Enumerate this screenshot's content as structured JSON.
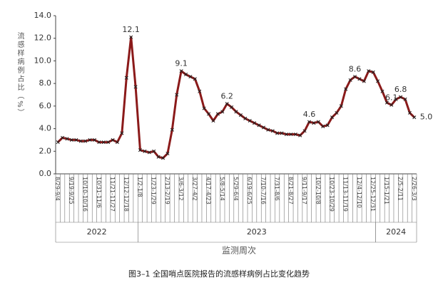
{
  "chart_data": {
    "type": "line",
    "y_label": "流感样病例占比（%）",
    "x_label": "监测周次",
    "caption": "图3–1 全国哨点医院报告的流感样病例占比变化趋势",
    "categories": [
      "8/29-9/4",
      null,
      null,
      "9/19-9/25",
      null,
      null,
      "10/10-10/16",
      null,
      null,
      "10/31-11/6",
      null,
      null,
      "11/21-11/27",
      null,
      null,
      "12/12-12/18",
      null,
      null,
      "1/2-1/8",
      null,
      null,
      "1/23-1/29",
      null,
      null,
      "2/13-2/19",
      null,
      null,
      "3/6-3/12",
      null,
      null,
      "3/27-4/2",
      null,
      null,
      "4/17-4/23",
      null,
      null,
      "5/8-5/14",
      null,
      null,
      "5/29-6/4",
      null,
      null,
      "6/19-6/25",
      null,
      null,
      "7/10-7/16",
      null,
      null,
      "7/31-8/6",
      null,
      null,
      "8/21-8/27",
      null,
      null,
      "9/11-9/17",
      null,
      null,
      "10/2-10/8",
      null,
      null,
      "10/23-10/29",
      null,
      null,
      "11/13-11/19",
      null,
      null,
      "12/4-12/10",
      null,
      null,
      "12/25-12/31",
      null,
      null,
      "1/15-1/21",
      null,
      null,
      "2/5-2/11",
      null,
      null,
      "2/26-3/3"
    ],
    "x_groups": [
      {
        "label": "2022",
        "count": 18
      },
      {
        "label": "2023",
        "count": 52
      },
      {
        "label": "2024",
        "count": 9
      }
    ],
    "series": [
      {
        "color": "#8b1a1a",
        "marker_color": "#222222",
        "values": [
          2.8,
          3.2,
          3.1,
          3.0,
          3.0,
          2.9,
          2.9,
          3.0,
          3.0,
          2.8,
          2.8,
          2.8,
          3.0,
          2.8,
          3.6,
          8.5,
          12.1,
          7.7,
          2.1,
          2.0,
          1.9,
          2.0,
          1.5,
          1.4,
          1.8,
          3.9,
          7.0,
          9.1,
          8.8,
          8.6,
          8.4,
          7.3,
          5.8,
          5.3,
          4.7,
          5.3,
          5.5,
          6.2,
          5.9,
          5.5,
          5.2,
          4.9,
          4.7,
          4.5,
          4.3,
          4.1,
          3.9,
          3.8,
          3.6,
          3.6,
          3.5,
          3.5,
          3.5,
          3.4,
          3.8,
          4.6,
          4.5,
          4.6,
          4.2,
          4.3,
          5.0,
          5.4,
          6.0,
          7.5,
          8.3,
          8.6,
          8.4,
          8.2,
          9.1,
          9.0,
          8.2,
          7.3,
          6.3,
          6.1,
          6.6,
          6.8,
          6.6,
          5.4,
          5.0
        ],
        "value_labels": [
          null,
          null,
          null,
          null,
          null,
          null,
          null,
          null,
          null,
          null,
          null,
          null,
          null,
          null,
          null,
          null,
          "12.1",
          null,
          null,
          null,
          null,
          null,
          null,
          null,
          null,
          null,
          null,
          "9.1",
          null,
          null,
          null,
          null,
          null,
          null,
          null,
          null,
          null,
          "6.2",
          null,
          null,
          null,
          null,
          null,
          null,
          null,
          null,
          null,
          null,
          null,
          null,
          null,
          null,
          null,
          null,
          null,
          "4.6",
          null,
          null,
          null,
          null,
          null,
          null,
          null,
          null,
          null,
          "8.6",
          null,
          null,
          null,
          null,
          null,
          null,
          null,
          "6.1",
          null,
          "6.8",
          null,
          null,
          "5.0"
        ]
      }
    ],
    "ylim": [
      0,
      14
    ],
    "yticks": [
      {
        "value": 0,
        "label": "0.0"
      },
      {
        "value": 2,
        "label": "2.0"
      },
      {
        "value": 4,
        "label": "4.0"
      },
      {
        "value": 6,
        "label": "6.0"
      },
      {
        "value": 8,
        "label": "8.0"
      },
      {
        "value": 10,
        "label": "10.0"
      },
      {
        "value": 12,
        "label": "12.0"
      },
      {
        "value": 14,
        "label": "14.0"
      }
    ]
  }
}
